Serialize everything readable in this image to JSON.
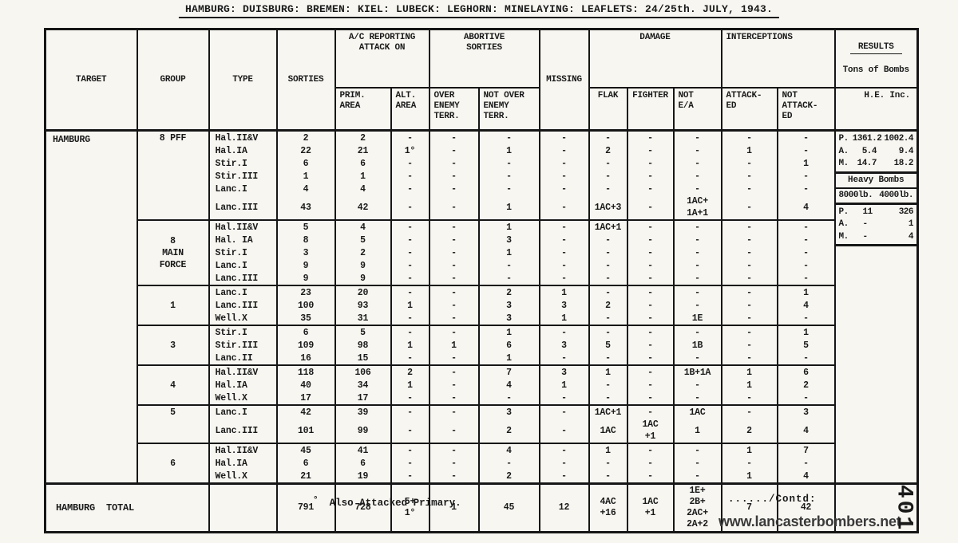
{
  "title": "HAMBURG: DUISBURG: BREMEN: KIEL: LUBECK: LEGHORN: MINELAYING: LEAFLETS: 24/25th. JULY, 1943.",
  "table": {
    "header": {
      "target": "TARGET",
      "group": "GROUP",
      "type": "TYPE",
      "sorties": "SORTIES",
      "attack_on": "A/C REPORTING\nATTACK ON",
      "prim": "PRIM.\nAREA",
      "alt": "ALT.\nAREA",
      "abortive": "ABORTIVE\nSORTIES",
      "over": "OVER\nENEMY\nTERR.",
      "not_over": "NOT OVER\nENEMY\nTERR.",
      "missing": "MISSING",
      "damage": "DAMAGE",
      "flak": "FLAK",
      "fighter": "FIGHTER",
      "not_ea": "NOT\nE/A",
      "interceptions": "INTERCEPTIONS",
      "attacked": "ATTACK-\nED",
      "not_attacked": "NOT\nATTACK-\nED",
      "results": "RESULTS",
      "tons": "Tons of Bombs",
      "he_inc": "H.E.  Inc."
    },
    "groups": [
      {
        "target": "HAMBURG",
        "group": "8 PFF",
        "rows": [
          {
            "type": "Hal.II&V",
            "sorties": "2",
            "prim": "2",
            "alt": "-",
            "over": "-",
            "not_over": "-",
            "missing": "-",
            "flak": "-",
            "fighter": "-",
            "not_ea": "-",
            "attacked": "-",
            "not_attacked": "-"
          },
          {
            "type": "Hal.IA",
            "sorties": "22",
            "prim": "21",
            "alt": "1°",
            "over": "-",
            "not_over": "1",
            "missing": "-",
            "flak": "2",
            "fighter": "-",
            "not_ea": "-",
            "attacked": "1",
            "not_attacked": "-"
          },
          {
            "type": "Stir.I",
            "sorties": "6",
            "prim": "6",
            "alt": "-",
            "over": "-",
            "not_over": "-",
            "missing": "-",
            "flak": "-",
            "fighter": "-",
            "not_ea": "-",
            "attacked": "-",
            "not_attacked": "1"
          },
          {
            "type": "Stir.III",
            "sorties": "1",
            "prim": "1",
            "alt": "-",
            "over": "-",
            "not_over": "-",
            "missing": "-",
            "flak": "-",
            "fighter": "-",
            "not_ea": "-",
            "attacked": "-",
            "not_attacked": "-"
          },
          {
            "type": "Lanc.I",
            "sorties": "4",
            "prim": "4",
            "alt": "-",
            "over": "-",
            "not_over": "-",
            "missing": "-",
            "flak": "-",
            "fighter": "-",
            "not_ea": "-",
            "attacked": "-",
            "not_attacked": "-"
          },
          {
            "type": "Lanc.III",
            "sorties": "43",
            "prim": "42",
            "alt": "-",
            "over": "-",
            "not_over": "1",
            "missing": "-",
            "flak": "1AC+3",
            "fighter": "-",
            "not_ea": "1AC+\n1A+1",
            "attacked": "-",
            "not_attacked": "4"
          }
        ]
      },
      {
        "group": "8\nMAIN\nFORCE",
        "rows": [
          {
            "type": "Hal.II&V",
            "sorties": "5",
            "prim": "4",
            "alt": "-",
            "over": "-",
            "not_over": "1",
            "missing": "-",
            "flak": "1AC+1",
            "fighter": "-",
            "not_ea": "-",
            "attacked": "-",
            "not_attacked": "-"
          },
          {
            "type": "Hal. IA",
            "sorties": "8",
            "prim": "5",
            "alt": "-",
            "over": "-",
            "not_over": "3",
            "missing": "-",
            "flak": "-",
            "fighter": "-",
            "not_ea": "-",
            "attacked": "-",
            "not_attacked": "-"
          },
          {
            "type": "Stir.I",
            "sorties": "3",
            "prim": "2",
            "alt": "-",
            "over": "-",
            "not_over": "1",
            "missing": "-",
            "flak": "-",
            "fighter": "-",
            "not_ea": "-",
            "attacked": "-",
            "not_attacked": "-"
          },
          {
            "type": "Lanc.I",
            "sorties": "9",
            "prim": "9",
            "alt": "-",
            "over": "-",
            "not_over": "-",
            "missing": "-",
            "flak": "-",
            "fighter": "-",
            "not_ea": "-",
            "attacked": "-",
            "not_attacked": "-"
          },
          {
            "type": "Lanc.III",
            "sorties": "9",
            "prim": "9",
            "alt": "-",
            "over": "-",
            "not_over": "-",
            "missing": "-",
            "flak": "-",
            "fighter": "-",
            "not_ea": "-",
            "attacked": "-",
            "not_attacked": "-"
          }
        ]
      },
      {
        "group": "1",
        "rows": [
          {
            "type": "Lanc.I",
            "sorties": "23",
            "prim": "20",
            "alt": "-",
            "over": "-",
            "not_over": "2",
            "missing": "1",
            "flak": "-",
            "fighter": "-",
            "not_ea": "-",
            "attacked": "-",
            "not_attacked": "1"
          },
          {
            "type": "Lanc.III",
            "sorties": "100",
            "prim": "93",
            "alt": "1",
            "over": "-",
            "not_over": "3",
            "missing": "3",
            "flak": "2",
            "fighter": "-",
            "not_ea": "-",
            "attacked": "-",
            "not_attacked": "4"
          },
          {
            "type": "Well.X",
            "sorties": "35",
            "prim": "31",
            "alt": "-",
            "over": "-",
            "not_over": "3",
            "missing": "1",
            "flak": "-",
            "fighter": "-",
            "not_ea": "1E",
            "attacked": "-",
            "not_attacked": "-"
          }
        ]
      },
      {
        "group": "3",
        "rows": [
          {
            "type": "Stir.I",
            "sorties": "6",
            "prim": "5",
            "alt": "-",
            "over": "-",
            "not_over": "1",
            "missing": "-",
            "flak": "-",
            "fighter": "-",
            "not_ea": "-",
            "attacked": "-",
            "not_attacked": "1"
          },
          {
            "type": "Stir.III",
            "sorties": "109",
            "prim": "98",
            "alt": "1",
            "over": "1",
            "not_over": "6",
            "missing": "3",
            "flak": "5",
            "fighter": "-",
            "not_ea": "1B",
            "attacked": "-",
            "not_attacked": "5"
          },
          {
            "type": "Lanc.II",
            "sorties": "16",
            "prim": "15",
            "alt": "-",
            "over": "-",
            "not_over": "1",
            "missing": "-",
            "flak": "-",
            "fighter": "-",
            "not_ea": "-",
            "attacked": "-",
            "not_attacked": "-"
          }
        ]
      },
      {
        "group": "4",
        "rows": [
          {
            "type": "Hal.II&V",
            "sorties": "118",
            "prim": "106",
            "alt": "2",
            "over": "-",
            "not_over": "7",
            "missing": "3",
            "flak": "1",
            "fighter": "-",
            "not_ea": "1B+1A",
            "attacked": "1",
            "not_attacked": "6"
          },
          {
            "type": "Hal.IA",
            "sorties": "40",
            "prim": "34",
            "alt": "1",
            "over": "-",
            "not_over": "4",
            "missing": "1",
            "flak": "-",
            "fighter": "-",
            "not_ea": "-",
            "attacked": "1",
            "not_attacked": "2"
          },
          {
            "type": "Well.X",
            "sorties": "17",
            "prim": "17",
            "alt": "-",
            "over": "-",
            "not_over": "-",
            "missing": "-",
            "flak": "-",
            "fighter": "-",
            "not_ea": "-",
            "attacked": "-",
            "not_attacked": "-"
          }
        ]
      },
      {
        "group": "5",
        "rows": [
          {
            "type": "Lanc.I",
            "sorties": "42",
            "prim": "39",
            "alt": "-",
            "over": "-",
            "not_over": "3",
            "missing": "-",
            "flak": "1AC+1",
            "fighter": "-",
            "not_ea": "1AC",
            "attacked": "-",
            "not_attacked": "3"
          },
          {
            "type": "Lanc.III",
            "sorties": "101",
            "prim": "99",
            "alt": "-",
            "over": "-",
            "not_over": "2",
            "missing": "-",
            "flak": "1AC",
            "fighter": "1AC\n+1",
            "not_ea": "1",
            "attacked": "2",
            "not_attacked": "4"
          }
        ]
      },
      {
        "group": "6",
        "rows": [
          {
            "type": "Hal.II&V",
            "sorties": "45",
            "prim": "41",
            "alt": "-",
            "over": "-",
            "not_over": "4",
            "missing": "-",
            "flak": "1",
            "fighter": "-",
            "not_ea": "-",
            "attacked": "1",
            "not_attacked": "7"
          },
          {
            "type": "Hal.IA",
            "sorties": "6",
            "prim": "6",
            "alt": "-",
            "over": "-",
            "not_over": "-",
            "missing": "-",
            "flak": "-",
            "fighter": "-",
            "not_ea": "-",
            "attacked": "-",
            "not_attacked": "-"
          },
          {
            "type": "Well.X",
            "sorties": "21",
            "prim": "19",
            "alt": "-",
            "over": "-",
            "not_over": "2",
            "missing": "-",
            "flak": "-",
            "fighter": "-",
            "not_ea": "-",
            "attacked": "1",
            "not_attacked": "4"
          }
        ]
      }
    ],
    "results": {
      "tons_rows": [
        {
          "label": "P.",
          "v1": "1361.2",
          "v2": "1002.4"
        },
        {
          "label": "A.",
          "v1": "5.4",
          "v2": "9.4"
        },
        {
          "label": "M.",
          "v1": "14.7",
          "v2": "18.2"
        }
      ],
      "heavy_title": "Heavy Bombs",
      "heavy_size_1": "8000lb.",
      "heavy_size_2": "4000lb.",
      "heavy_rows": [
        {
          "label": "P.",
          "v1": "11",
          "v2": "326"
        },
        {
          "label": "A.",
          "v1": "-",
          "v2": "1"
        },
        {
          "label": "M.",
          "v1": "-",
          "v2": "4"
        }
      ]
    },
    "total": {
      "label": "HAMBURG  TOTAL",
      "type": "",
      "sorties": "791",
      "prim": "728",
      "alt": "5+\n1°",
      "over": "1",
      "not_over": "45",
      "missing": "12",
      "flak": "4AC\n+16",
      "fighter": "1AC\n+1",
      "not_ea": "1E+\n2B+\n2AC+\n2A+2",
      "attacked": "7",
      "not_attacked": "42"
    }
  },
  "footer": {
    "footnote_symbol": "°",
    "footnote": "Also Attacked Primary.",
    "contd": "....../Contd:",
    "watermark": "www.lancasterbombers.net",
    "page_number": "401"
  }
}
